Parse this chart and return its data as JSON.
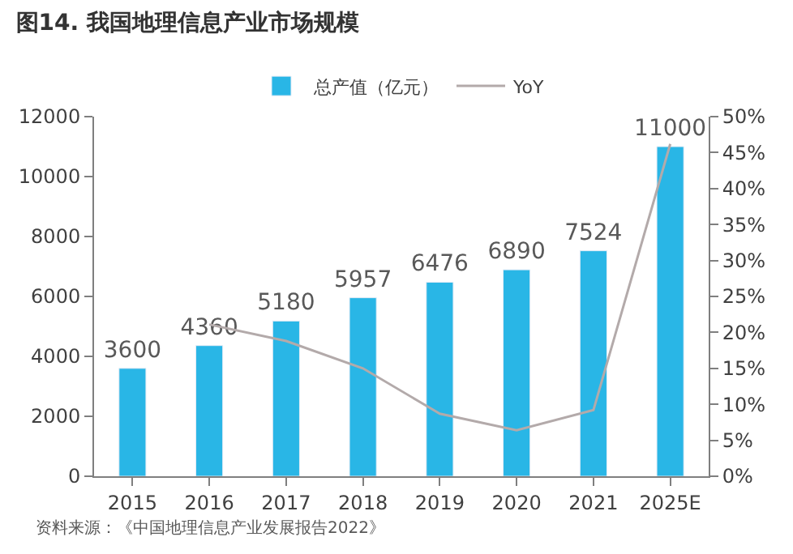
{
  "chart_data": {
    "type": "bar",
    "title": "图14. 我国地理信息产业市场规模",
    "categories": [
      "2015",
      "2016",
      "2017",
      "2018",
      "2019",
      "2020",
      "2021",
      "2025E"
    ],
    "series": [
      {
        "name": "总产值（亿元）",
        "color": "#29b6e6",
        "values": [
          3600,
          4360,
          5180,
          5957,
          6476,
          6890,
          7524,
          11000
        ],
        "data_labels": true
      },
      {
        "name": "YoY",
        "type": "line",
        "axis": "y2",
        "color": "#b3aaaa",
        "values": [
          null,
          21.1,
          18.8,
          15.0,
          8.7,
          6.4,
          9.2,
          46.2
        ]
      }
    ],
    "ylim": [
      0,
      12000
    ],
    "yticks": [
      0,
      2000,
      4000,
      6000,
      8000,
      10000,
      12000
    ],
    "y2lim": [
      0,
      50
    ],
    "y2ticks": [
      {
        "value": 0,
        "label": "0%"
      },
      {
        "value": 5,
        "label": "5%"
      },
      {
        "value": 10,
        "label": "10%"
      },
      {
        "value": 15,
        "label": "15%"
      },
      {
        "value": 20,
        "label": "20%"
      },
      {
        "value": 25,
        "label": "25%"
      },
      {
        "value": 30,
        "label": "30%"
      },
      {
        "value": 35,
        "label": "35%"
      },
      {
        "value": 40,
        "label": "40%"
      },
      {
        "value": 45,
        "label": "45%"
      },
      {
        "value": 50,
        "label": "50%"
      }
    ],
    "legend": "top",
    "marker": "none",
    "line_style": "solid",
    "annotations": [
      "资料来源：《中国地理信息产业发展报告2022》"
    ]
  }
}
